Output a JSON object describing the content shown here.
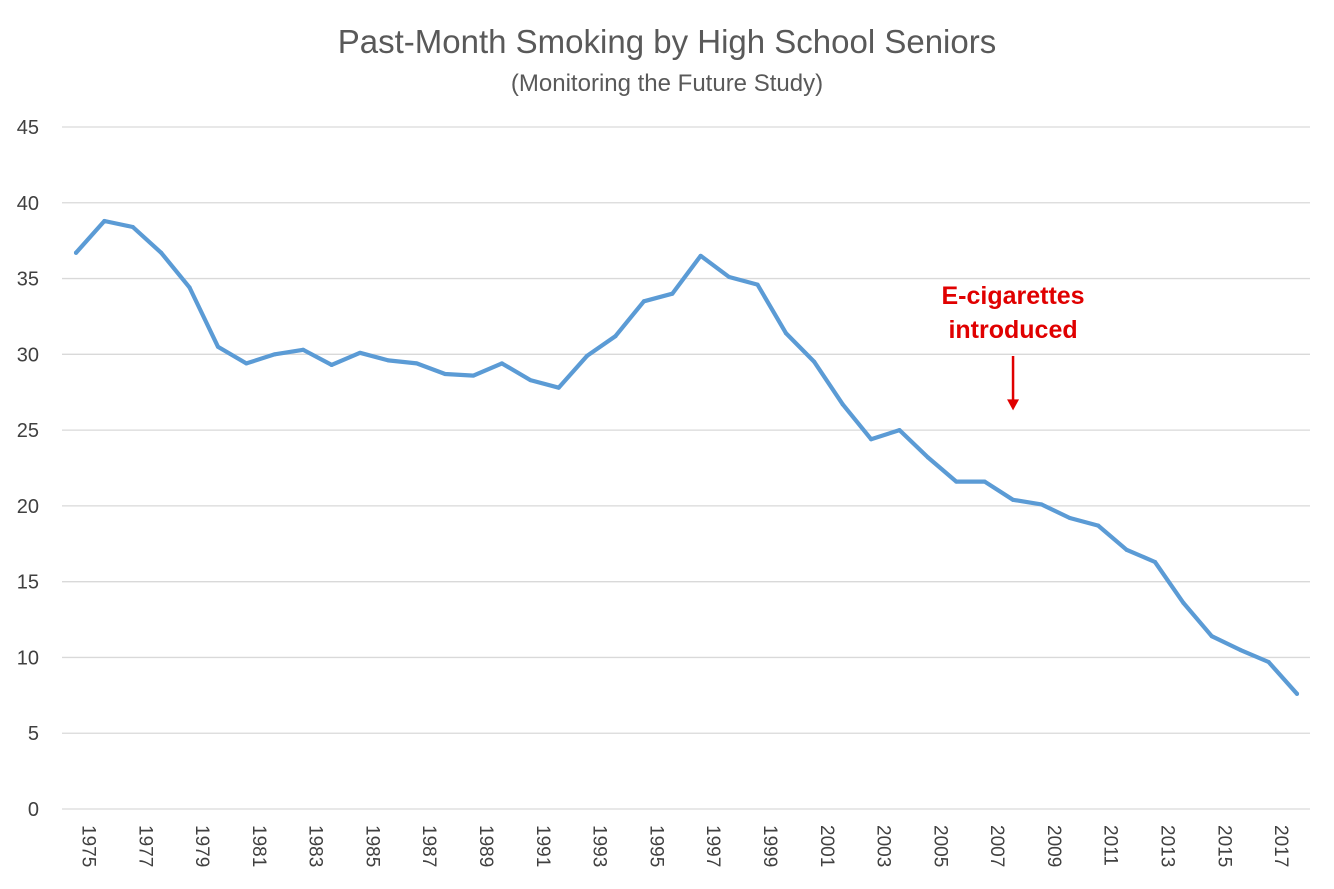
{
  "chart_data": {
    "type": "line",
    "title": "Past-Month Smoking by High School Seniors",
    "subtitle": "(Monitoring the Future Study)",
    "xlabel": "",
    "ylabel": "",
    "ylim": [
      0,
      45
    ],
    "yticks": [
      "0",
      "5",
      "10",
      "15",
      "20",
      "25",
      "30",
      "35",
      "40",
      "45"
    ],
    "xlim": [
      1975,
      2018
    ],
    "xtick_labels": [
      "1975",
      "1977",
      "1979",
      "1981",
      "1983",
      "1985",
      "1987",
      "1989",
      "1991",
      "1993",
      "1995",
      "1997",
      "1999",
      "2001",
      "2003",
      "2005",
      "2007",
      "2009",
      "2011",
      "2013",
      "2015",
      "2017"
    ],
    "grid": true,
    "legend": "none",
    "line_color": "#5b9bd5",
    "x": [
      1975,
      1976,
      1977,
      1978,
      1979,
      1980,
      1981,
      1982,
      1983,
      1984,
      1985,
      1986,
      1987,
      1988,
      1989,
      1990,
      1991,
      1992,
      1993,
      1994,
      1995,
      1996,
      1997,
      1998,
      1999,
      2000,
      2001,
      2002,
      2003,
      2004,
      2005,
      2006,
      2007,
      2008,
      2009,
      2010,
      2011,
      2012,
      2013,
      2014,
      2015,
      2016,
      2017,
      2018
    ],
    "series": [
      {
        "values": [
          36.7,
          38.8,
          38.4,
          36.7,
          34.4,
          30.5,
          29.4,
          30.0,
          30.3,
          29.3,
          30.1,
          29.6,
          29.4,
          28.7,
          28.6,
          29.4,
          28.3,
          27.8,
          29.9,
          31.2,
          33.5,
          34.0,
          36.5,
          35.1,
          34.6,
          31.4,
          29.5,
          26.7,
          24.4,
          25.0,
          23.2,
          21.6,
          21.6,
          20.4,
          20.1,
          19.2,
          18.7,
          17.1,
          16.3,
          13.6,
          11.4,
          10.5,
          9.7,
          7.6
        ]
      }
    ],
    "annotation": {
      "lines": [
        "E-cigarettes",
        "introduced"
      ],
      "x": 2008,
      "arrow_to_y": 26.3,
      "color": "#e00000"
    }
  }
}
